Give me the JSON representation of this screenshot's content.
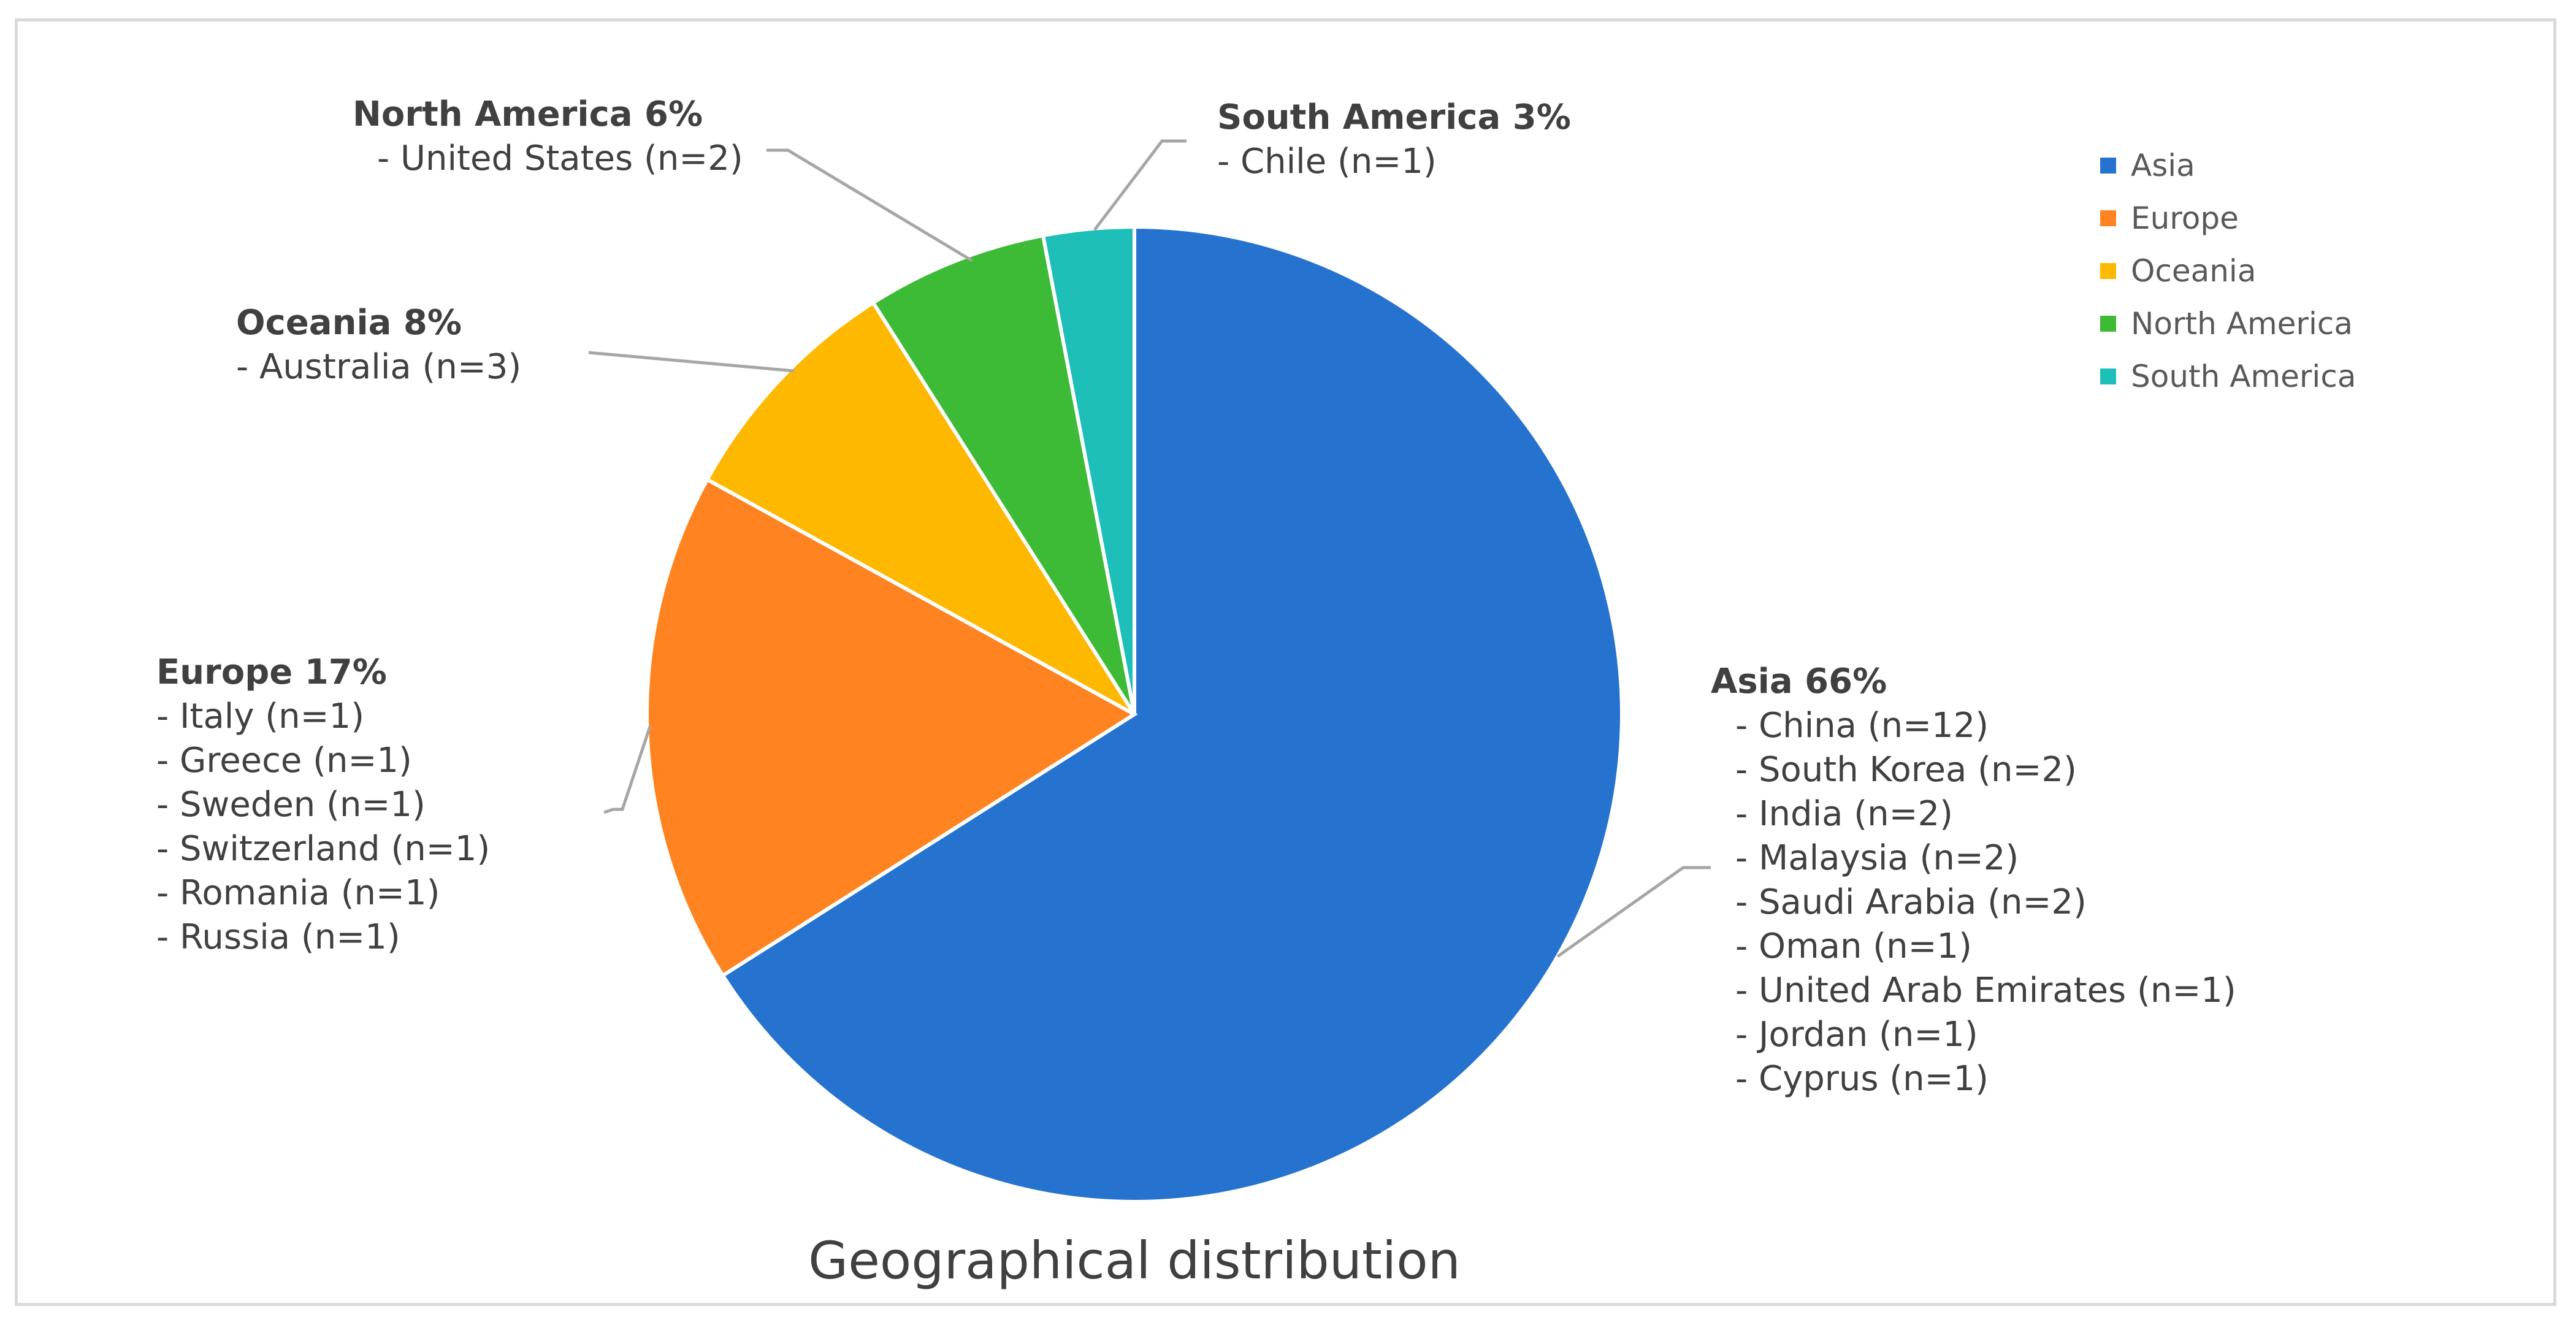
{
  "chart_data": {
    "type": "pie",
    "title": "Geographical distribution",
    "legend_position": "top-right",
    "slices": [
      {
        "name": "Asia",
        "value": 66,
        "label": "Asia 66%",
        "color": "#2672cf",
        "items": [
          "- China (n=12)",
          "- South Korea (n=2)",
          "- India (n=2)",
          "- Malaysia (n=2)",
          "- Saudi Arabia (n=2)",
          "- Oman (n=1)",
          "- United Arab Emirates (n=1)",
          "- Jordan (n=1)",
          "- Cyprus (n=1)"
        ]
      },
      {
        "name": "Europe",
        "value": 17,
        "label": "Europe 17%",
        "color": "#ff8421",
        "items": [
          "- Italy (n=1)",
          "- Greece (n=1)",
          "- Sweden (n=1)",
          "- Switzerland (n=1)",
          "- Romania (n=1)",
          "- Russia (n=1)"
        ]
      },
      {
        "name": "Oceania",
        "value": 8,
        "label": "Oceania 8%",
        "color": "#ffb800",
        "items": [
          "- Australia (n=3)"
        ]
      },
      {
        "name": "North America",
        "value": 6,
        "label": "North America 6%",
        "color": "#3dbb36",
        "items": [
          "- United States (n=2)"
        ]
      },
      {
        "name": "South America",
        "value": 3,
        "label": "South America 3%",
        "color": "#1dbfb8",
        "items": [
          "-  Chile (n=1)"
        ]
      }
    ]
  }
}
